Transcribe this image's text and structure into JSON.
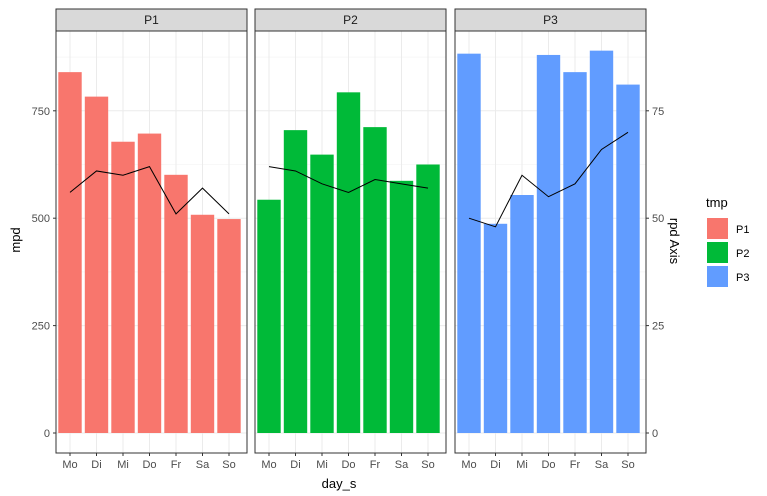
{
  "chart_data": {
    "type": "bar",
    "xlabel": "day_s",
    "ylabel": "mpd",
    "y2label": "rpd Axis",
    "ylim": [
      0,
      930
    ],
    "y2lim": [
      0,
      93
    ],
    "y_ticks": [
      0,
      250,
      500,
      750
    ],
    "y2_ticks": [
      0,
      25,
      50,
      75
    ],
    "categories": [
      "Mo",
      "Di",
      "Mi",
      "Do",
      "Fr",
      "Sa",
      "So"
    ],
    "legend": {
      "title": "tmp",
      "position": "right",
      "entries": [
        {
          "label": "P1",
          "color": "#F8766D"
        },
        {
          "label": "P2",
          "color": "#00BA38"
        },
        {
          "label": "P3",
          "color": "#619CFF"
        }
      ]
    },
    "grid": true,
    "facets": [
      {
        "name": "P1",
        "color": "#F8766D",
        "bar_values": [
          840,
          783,
          678,
          697,
          601,
          508,
          498
        ],
        "line_values": [
          56,
          61,
          60,
          62,
          51,
          57,
          51
        ]
      },
      {
        "name": "P2",
        "color": "#00BA38",
        "bar_values": [
          543,
          705,
          648,
          793,
          712,
          587,
          625
        ],
        "line_values": [
          62,
          61,
          58,
          56,
          59,
          58,
          57
        ]
      },
      {
        "name": "P3",
        "color": "#619CFF",
        "bar_values": [
          883,
          487,
          554,
          880,
          840,
          890,
          811
        ],
        "line_values": [
          50,
          48,
          60,
          55,
          58,
          66,
          70
        ]
      }
    ]
  }
}
